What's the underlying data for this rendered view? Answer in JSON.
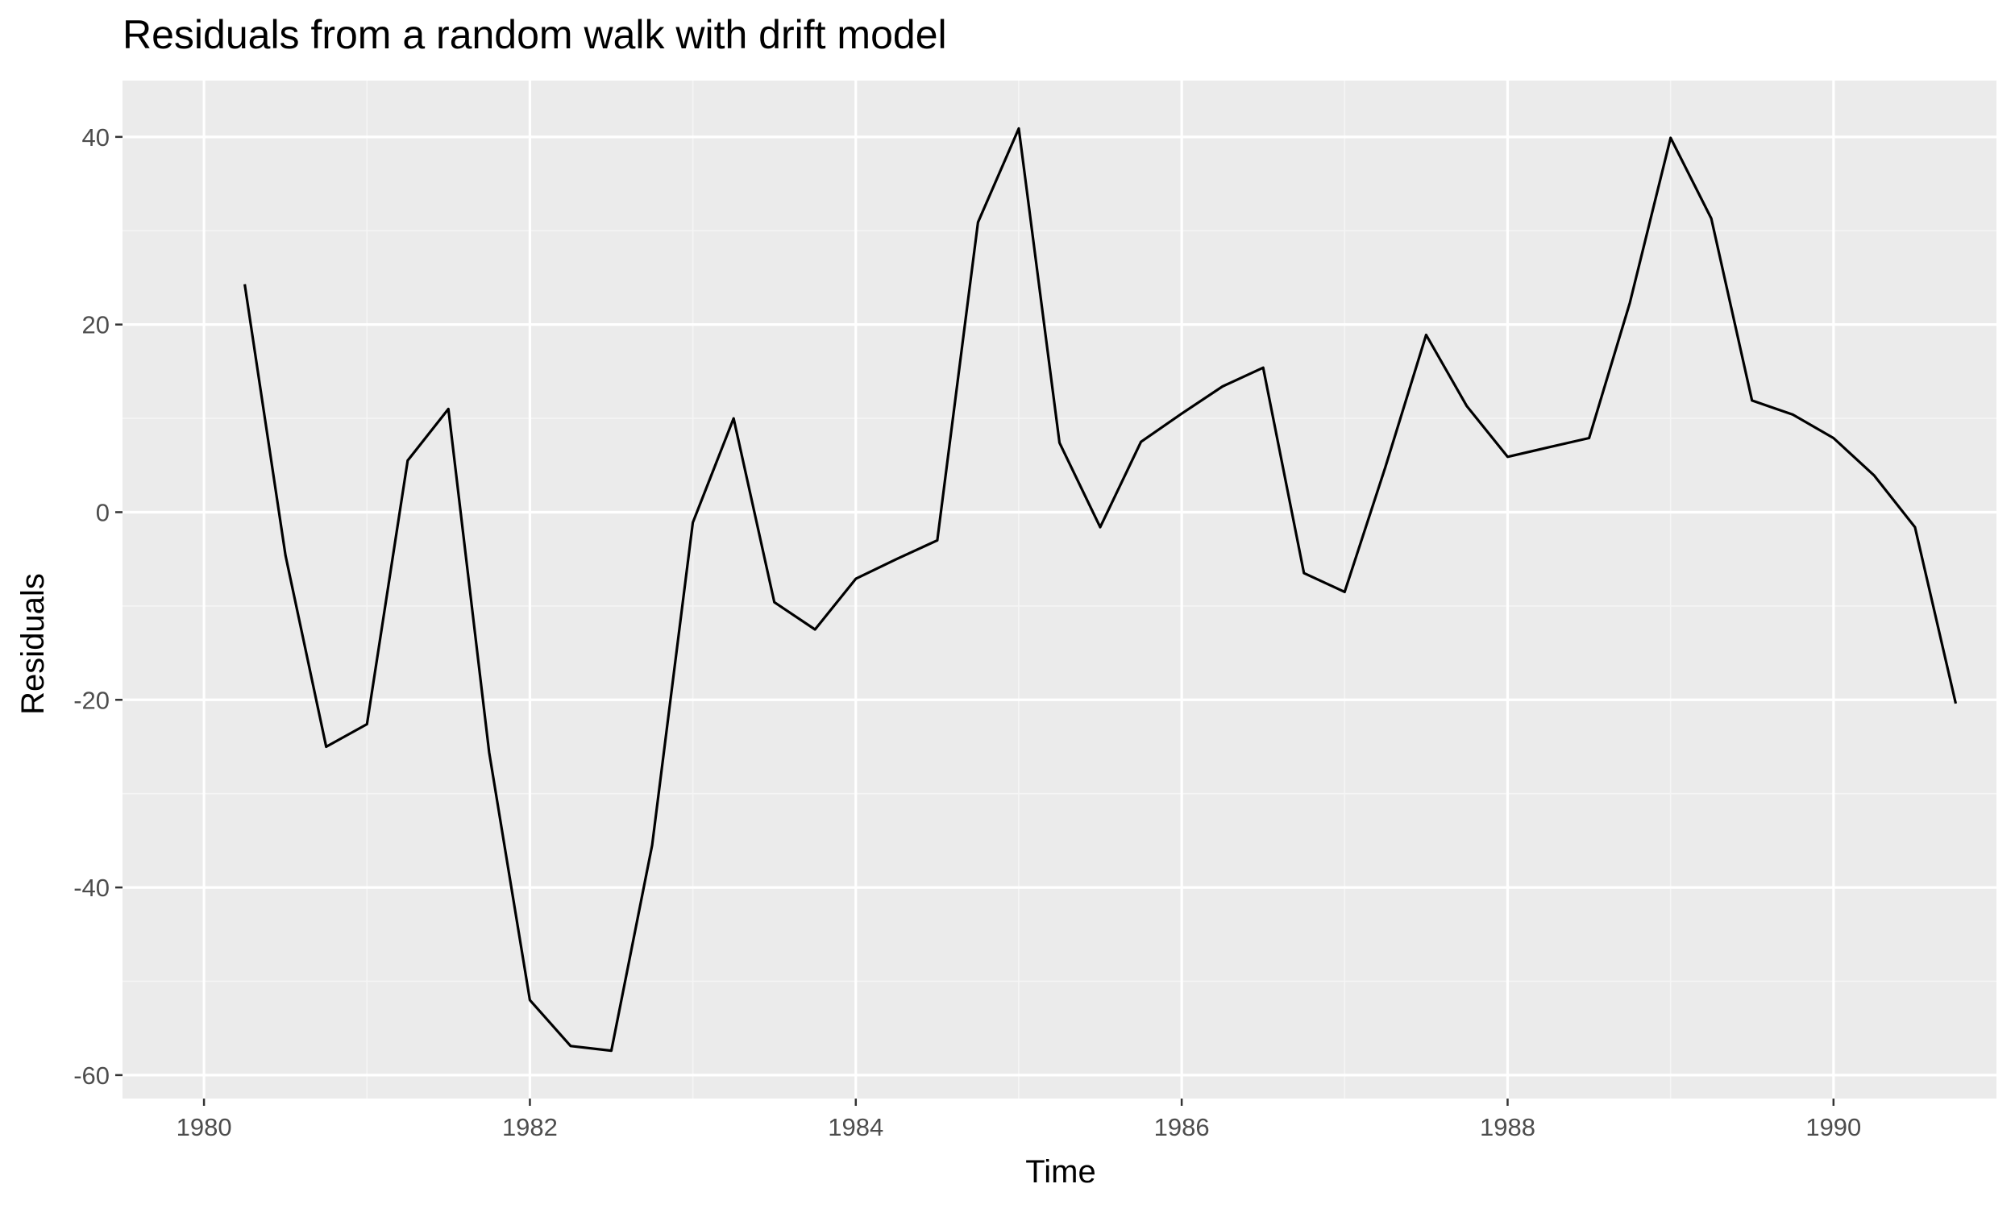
{
  "chart_data": {
    "type": "line",
    "title": "Residuals from a random walk with drift model",
    "xlabel": "Time",
    "ylabel": "Residuals",
    "xlim": [
      1979.5,
      1991.0
    ],
    "ylim": [
      -62.5,
      46
    ],
    "x_ticks": [
      1980,
      1982,
      1984,
      1986,
      1988,
      1990
    ],
    "x_tick_labels": [
      "1980",
      "1982",
      "1984",
      "1986",
      "1988",
      "1990"
    ],
    "y_ticks": [
      -60,
      -40,
      -20,
      0,
      20,
      40
    ],
    "y_tick_labels": [
      "-60",
      "-40",
      "-20",
      "0",
      "20",
      "40"
    ],
    "grid": true,
    "legend": "none",
    "colors": {
      "panel_background": "#ebebeb",
      "grid_major": "#ffffff",
      "grid_minor": "#f5f5f5",
      "line": "#000000",
      "tick_text": "#4d4d4d",
      "tick_mark": "#333333"
    },
    "series": [
      {
        "x": [
          1980.25,
          1980.5,
          1980.75,
          1981.0,
          1981.25,
          1981.5,
          1981.75,
          1982.0,
          1982.25,
          1982.5,
          1982.75,
          1983.0,
          1983.25,
          1983.5,
          1983.75,
          1984.0,
          1984.25,
          1984.5,
          1984.75,
          1985.0,
          1985.25,
          1985.5,
          1985.75,
          1986.0,
          1986.25,
          1986.5,
          1986.75,
          1987.0,
          1987.25,
          1987.5,
          1987.75,
          1988.0,
          1988.25,
          1988.5,
          1988.75,
          1989.0,
          1989.25,
          1989.5,
          1989.75,
          1990.0,
          1990.25,
          1990.5,
          1990.75
        ],
        "y": [
          24.3,
          -4.6,
          -25.0,
          -22.6,
          5.5,
          11.0,
          -25.6,
          -52.0,
          -56.9,
          -57.4,
          -35.5,
          -1.1,
          10.0,
          -9.6,
          -12.5,
          -7.1,
          -5.0,
          -3.0,
          30.9,
          40.9,
          7.4,
          -1.6,
          7.5,
          10.5,
          13.4,
          15.4,
          -6.5,
          -8.5,
          4.8,
          18.9,
          11.3,
          5.9,
          6.9,
          7.9,
          22.3,
          39.9,
          31.3,
          11.9,
          10.4,
          7.9,
          3.9,
          -1.6,
          -20.4
        ]
      }
    ]
  }
}
